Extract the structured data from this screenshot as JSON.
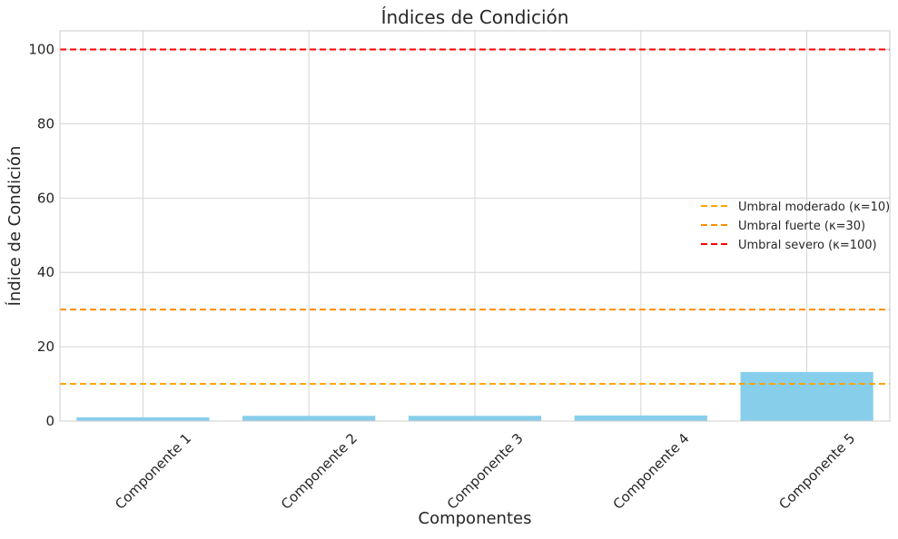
{
  "chart_data": {
    "type": "bar",
    "title": "Índices de Condición",
    "xlabel": "Componentes",
    "ylabel": "Índice de Condición",
    "categories": [
      "Componente 1",
      "Componente 2",
      "Componente 3",
      "Componente 4",
      "Componente 5"
    ],
    "values": [
      1.0,
      1.4,
      1.4,
      1.5,
      13.2
    ],
    "bar_color": "#87ceeb",
    "ylim": [
      0,
      105
    ],
    "yticks": [
      0,
      20,
      40,
      60,
      80,
      100
    ],
    "grid": true,
    "legend_position": "center-right",
    "thresholds": [
      {
        "label": "Umbral moderado (κ=10)",
        "value": 10,
        "color": "#ffa500",
        "style": "dashed"
      },
      {
        "label": "Umbral fuerte (κ=30)",
        "value": 30,
        "color": "#ff8c00",
        "style": "dashed"
      },
      {
        "label": "Umbral severo (κ=100)",
        "value": 100,
        "color": "#ff0000",
        "style": "dashed"
      }
    ]
  }
}
